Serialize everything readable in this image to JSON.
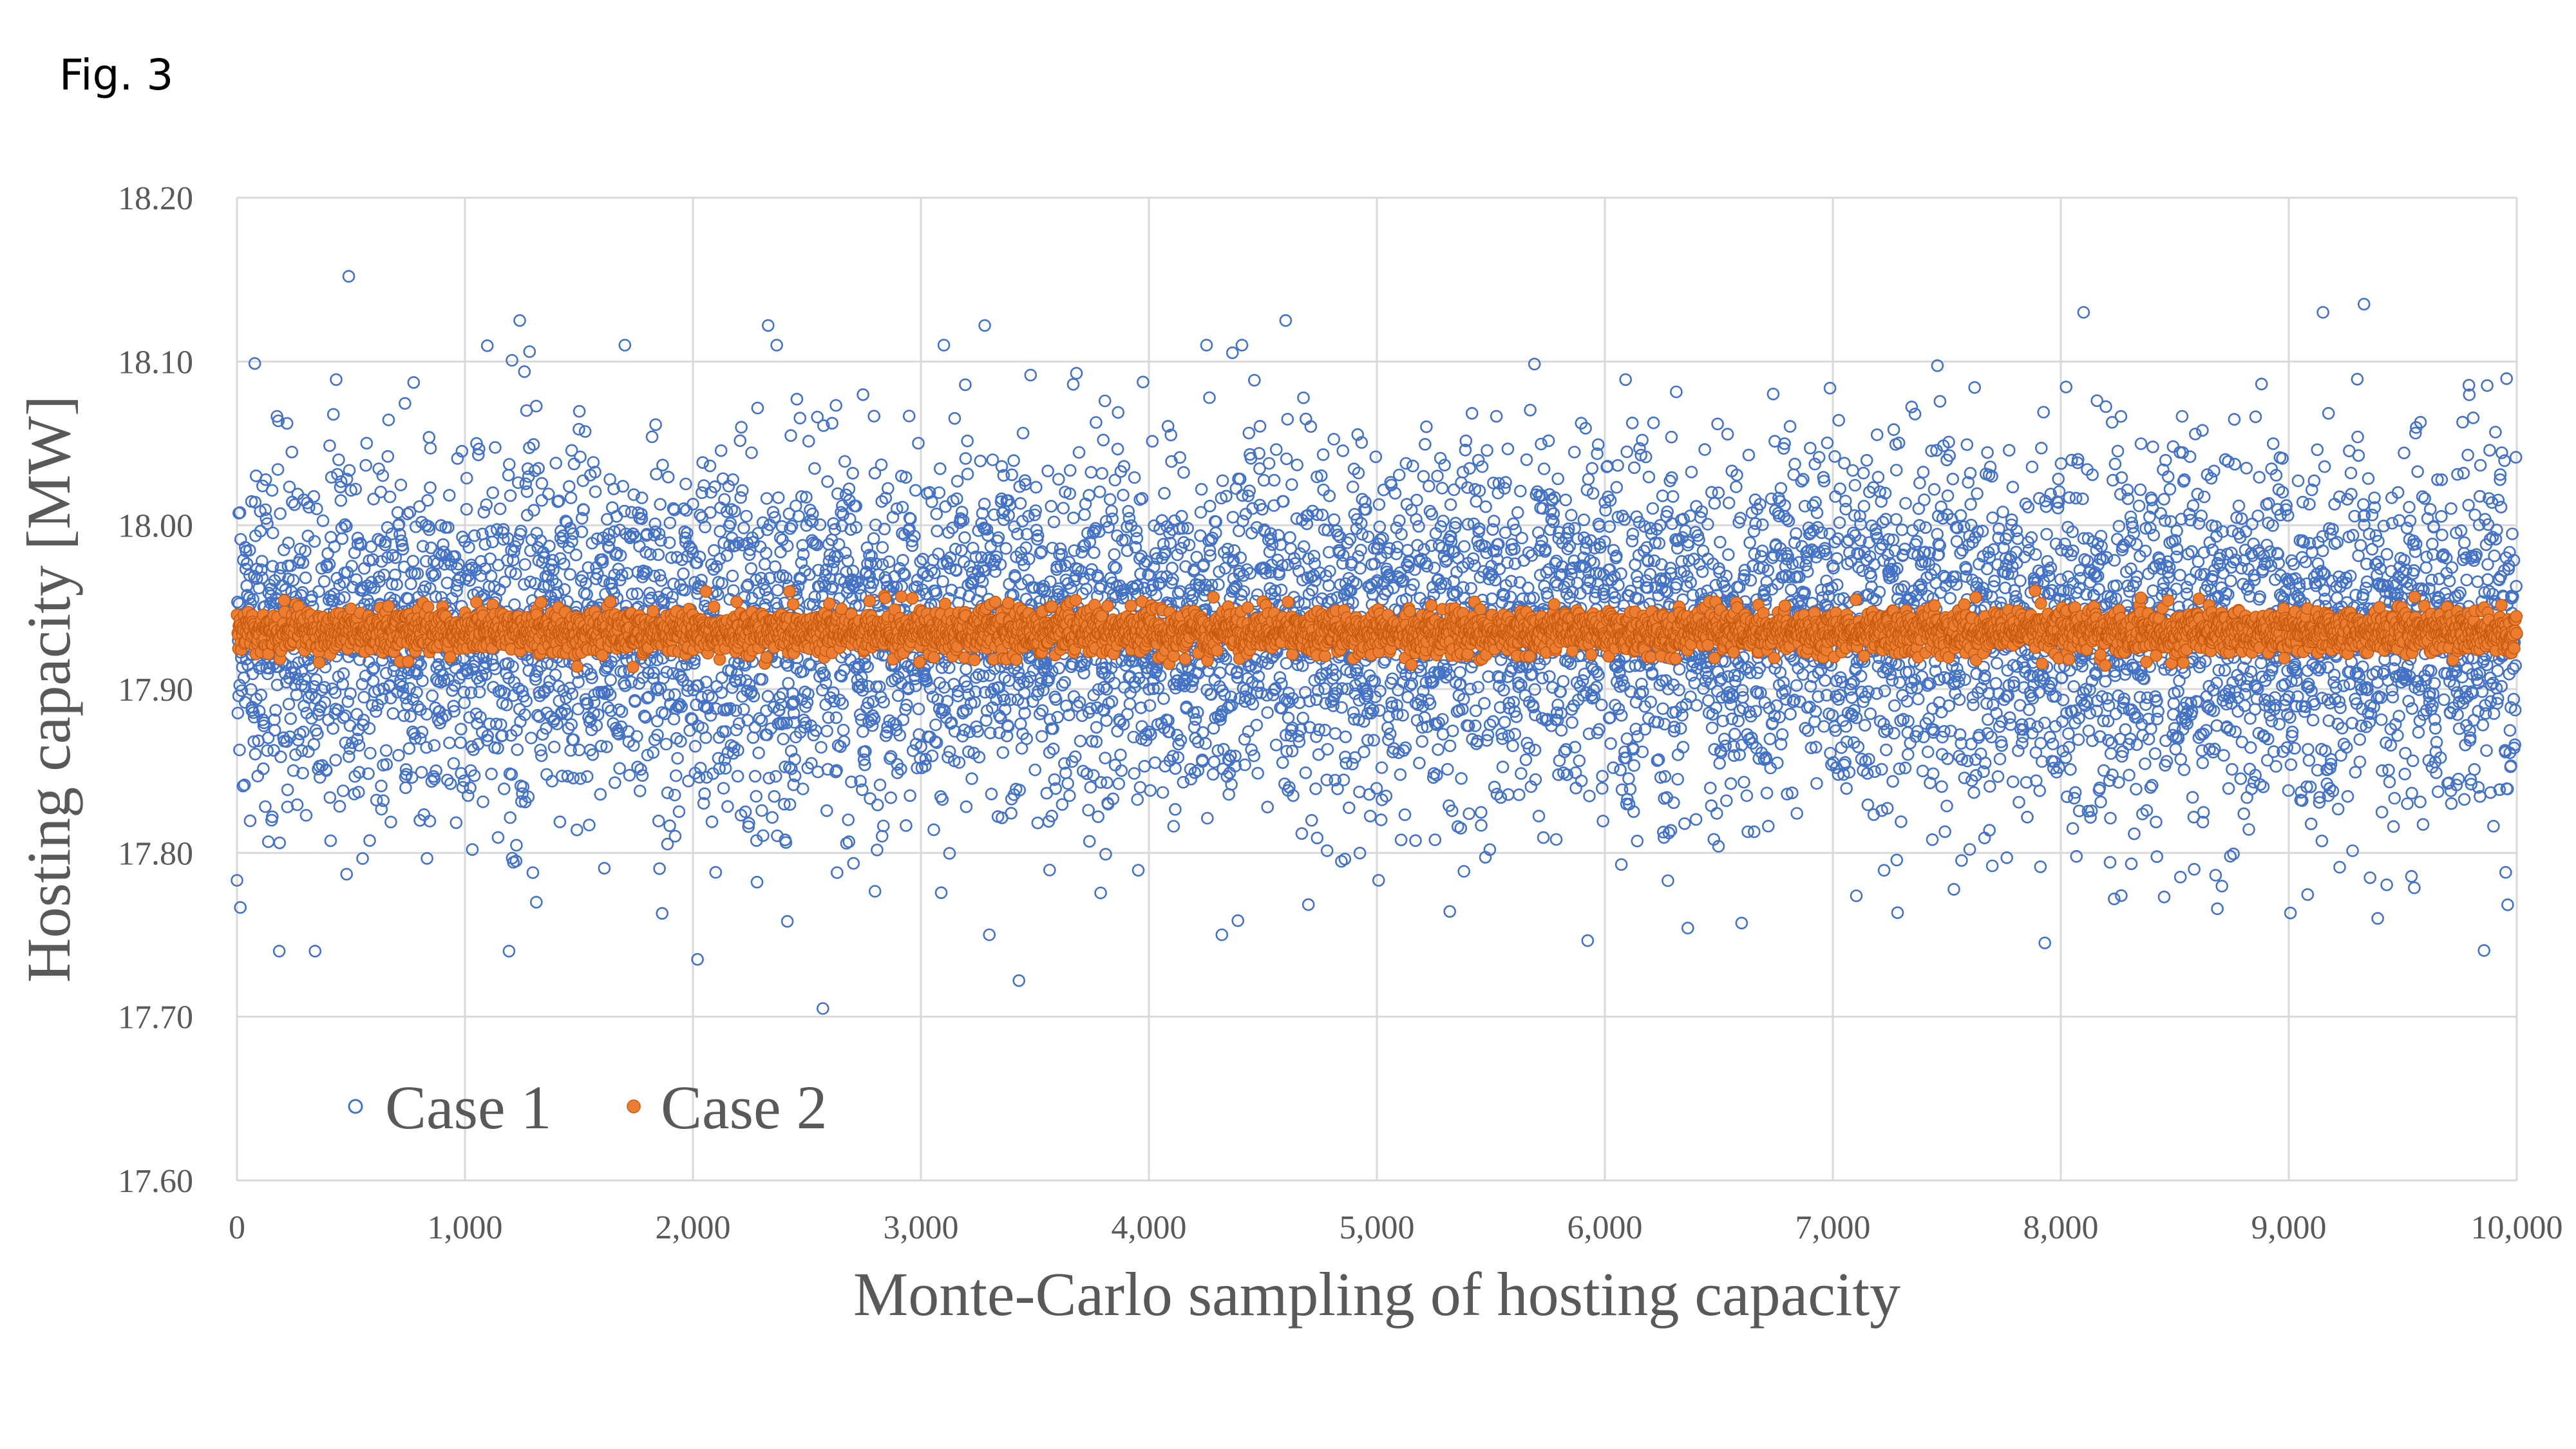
{
  "figure_label": "Fig. 3",
  "chart_data": {
    "type": "scatter",
    "xlabel": "Monte-Carlo sampling of hosting capacity",
    "ylabel": "Hosting capacity [MW]",
    "xlim": [
      0,
      10000
    ],
    "ylim": [
      17.6,
      18.2
    ],
    "x_ticks": [
      "0",
      "1,000",
      "2,000",
      "3,000",
      "4,000",
      "5,000",
      "6,000",
      "7,000",
      "8,000",
      "9,000",
      "10,000"
    ],
    "y_ticks": [
      "17.60",
      "17.70",
      "17.80",
      "17.90",
      "18.00",
      "18.10",
      "18.20"
    ],
    "grid": true,
    "legend_position": "bottom-left",
    "series": [
      {
        "name": "Case 1",
        "marker": "hollow-circle",
        "color": "#4472C4",
        "samples": 10000,
        "points_approx": {
          "center": 17.935,
          "typical_range": [
            17.8,
            18.07
          ],
          "min": 17.705,
          "max": 18.152
        },
        "notable_points": [
          [
            490,
            18.152
          ],
          [
            2570,
            17.705
          ],
          [
            3430,
            17.722
          ],
          [
            9330,
            18.135
          ],
          [
            1240,
            18.125
          ],
          [
            2330,
            18.122
          ],
          [
            3280,
            18.122
          ],
          [
            4600,
            18.125
          ],
          [
            8100,
            18.13
          ],
          [
            9150,
            18.13
          ],
          [
            7930,
            17.745
          ],
          [
            4320,
            17.75
          ],
          [
            3300,
            17.75
          ],
          [
            2020,
            17.735
          ],
          [
            9390,
            17.76
          ]
        ]
      },
      {
        "name": "Case 2",
        "marker": "filled-circle",
        "color": "#ED7D31",
        "samples": 10000,
        "points_approx": {
          "center": 17.935,
          "typical_range": [
            17.92,
            17.952
          ],
          "min": 17.913,
          "max": 17.96
        }
      }
    ]
  }
}
